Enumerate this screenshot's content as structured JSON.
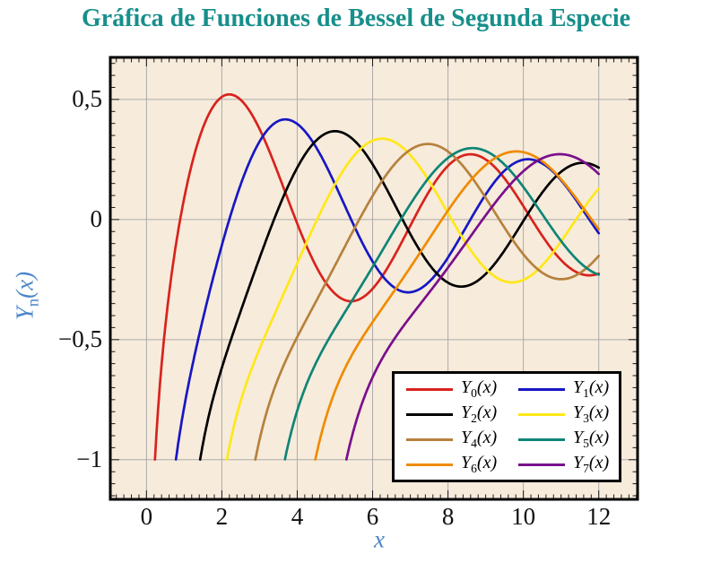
{
  "title": {
    "text": "Gráfica de Funciones de Bessel de Segunda Especie",
    "color": "#178f8b"
  },
  "axes": {
    "xlabel": "x",
    "ylabel": {
      "sym": "Y",
      "sub": "n",
      "rest": "(x)"
    },
    "label_color": "#4a86c9",
    "tick_label_color": "#111111",
    "xticks": [
      0,
      2,
      4,
      6,
      8,
      10,
      12
    ],
    "xtick_labels": [
      "0",
      "2",
      "4",
      "6",
      "8",
      "10",
      "12"
    ],
    "yticks": [
      0.5,
      0,
      -0.5,
      -1
    ],
    "ytick_labels": [
      "0,5",
      "0",
      "−0,5",
      "−1"
    ],
    "xmin": -0.96,
    "xmax": 13.03,
    "ymin": -1.165,
    "ymax": 0.675,
    "minor_x_step": 0.2,
    "minor_y_step": 0.05
  },
  "plot": {
    "bg": "#f7ebdb",
    "grid_color": "#ababab",
    "frame_color": "#000000"
  },
  "chart_data": {
    "type": "line",
    "title": "Gráfica de Funciones de Bessel de Segunda Especie",
    "xlabel": "x",
    "ylabel": "Y_n(x)",
    "function_family": "Bessel functions of the second kind Y_n(x), n = 0..7",
    "x_range": [
      0,
      12
    ],
    "clip_y_min": -1,
    "grid": true,
    "legend_position": "lower-right-inside",
    "series": [
      {
        "n": 0,
        "label": "Y0(x)",
        "sym": "Y",
        "sub": "0",
        "rest": "(x)",
        "color": "#d8231d",
        "visible_from_x": 0.23,
        "samples_x": [
          1,
          2,
          3,
          4,
          5,
          6,
          7,
          8,
          9,
          10,
          11,
          12
        ],
        "samples_y": [
          0.0883,
          0.5104,
          0.3769,
          -0.0169,
          -0.3085,
          -0.2882,
          -0.0259,
          0.2235,
          0.2499,
          0.0557,
          -0.1688,
          -0.2252
        ]
      },
      {
        "n": 1,
        "label": "Y1(x)",
        "sym": "Y",
        "sub": "1",
        "rest": "(x)",
        "color": "#1617c4",
        "visible_from_x": 0.82,
        "samples_x": [
          1,
          2,
          3,
          4,
          5,
          6,
          7,
          8,
          9,
          10,
          11,
          12
        ],
        "samples_y": [
          -0.7812,
          -0.107,
          0.3247,
          0.3979,
          0.1479,
          -0.175,
          -0.3027,
          -0.1581,
          0.1043,
          0.249,
          0.1637,
          -0.0571
        ]
      },
      {
        "n": 2,
        "label": "Y2(x)",
        "sym": "Y",
        "sub": "2",
        "rest": "(x)",
        "color": "#000000",
        "visible_from_x": 1.44,
        "samples_x": [
          2,
          3,
          4,
          5,
          6,
          7,
          8,
          9,
          10,
          11,
          12
        ],
        "samples_y": [
          -0.6174,
          -0.1604,
          0.2159,
          0.3677,
          0.2299,
          -0.0606,
          -0.263,
          -0.2267,
          -0.0059,
          0.1986,
          0.2157
        ]
      },
      {
        "n": 3,
        "label": "Y3(x)",
        "sym": "Y",
        "sub": "3",
        "rest": "(x)",
        "color": "#ffe818",
        "visible_from_x": 2.21,
        "samples_x": [
          3,
          4,
          5,
          6,
          7,
          8,
          9,
          10,
          11,
          12
        ],
        "samples_y": [
          -0.5386,
          -0.182,
          0.1463,
          0.3283,
          0.2681,
          0.0266,
          -0.2051,
          -0.2514,
          -0.0915,
          0.129
        ]
      },
      {
        "n": 4,
        "label": "Y4(x)",
        "sym": "Y",
        "sub": "4",
        "rest": "(x)",
        "color": "#b6813d",
        "visible_from_x": 2.9,
        "samples_x": [
          3,
          4,
          5,
          6,
          7,
          8,
          9,
          10,
          11,
          12
        ],
        "samples_y": [
          -0.9168,
          -0.4889,
          -0.1921,
          0.0984,
          0.2904,
          0.283,
          0.09,
          -0.145,
          -0.2485,
          -0.1512
        ]
      },
      {
        "n": 5,
        "label": "Y5(x)",
        "sym": "Y",
        "sub": "5",
        "rest": "(x)",
        "color": "#0e8577",
        "visible_from_x": 3.66,
        "samples_x": [
          4,
          5,
          6,
          7,
          8,
          9,
          10,
          11,
          12
        ],
        "samples_y": [
          -0.7958,
          -0.4537,
          -0.1971,
          0.0638,
          0.2564,
          0.2851,
          0.1354,
          -0.0892,
          -0.2298
        ]
      },
      {
        "n": 6,
        "label": "Y6(x)",
        "sym": "Y",
        "sub": "6",
        "rest": "(x)",
        "color": "#f08b00",
        "visible_from_x": 4.52,
        "samples_x": [
          5,
          6,
          7,
          8,
          9,
          10,
          11,
          12
        ],
        "samples_y": [
          -0.7153,
          -0.4269,
          -0.1993,
          0.0375,
          0.2268,
          0.2804,
          0.1674,
          -0.0403
        ]
      },
      {
        "n": 7,
        "label": "Y7(x)",
        "sym": "Y",
        "sub": "7",
        "rest": "(x)",
        "color": "#7a0f8c",
        "visible_from_x": 5.33,
        "samples_x": [
          6,
          7,
          8,
          9,
          10,
          11,
          12
        ],
        "samples_y": [
          -0.6567,
          -0.4055,
          -0.2002,
          0.0173,
          0.2011,
          0.2718,
          0.1895
        ]
      }
    ]
  }
}
